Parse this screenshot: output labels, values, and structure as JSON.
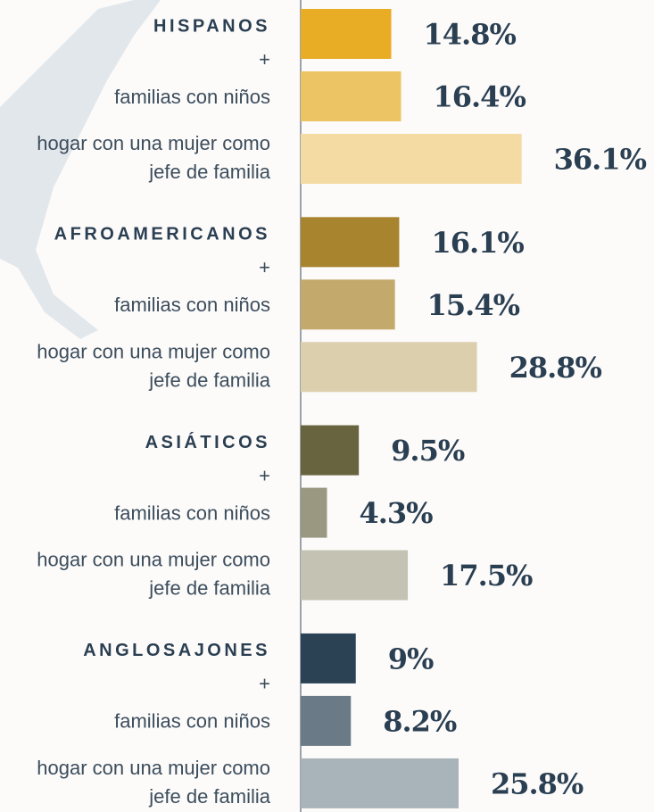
{
  "chart_data": {
    "type": "bar",
    "orientation": "horizontal",
    "joiner": "+",
    "subcategories": [
      "familias con niños",
      "hogar con una mujer como jefe de familia"
    ],
    "xlim": [
      0,
      50
    ],
    "groups": [
      {
        "name": "HISPANOS",
        "colors": [
          "#e8ad25",
          "#edc463",
          "#f4dba3"
        ],
        "values": [
          14.8,
          16.4,
          36.1
        ],
        "value_labels": [
          "14.8%",
          "16.4%",
          "36.1%"
        ]
      },
      {
        "name": "AFROAMERICANOS",
        "colors": [
          "#a8842f",
          "#c4a96c",
          "#dccfae"
        ],
        "values": [
          16.1,
          15.4,
          28.8
        ],
        "value_labels": [
          "16.1%",
          "15.4%",
          "28.8%"
        ]
      },
      {
        "name": "ASIÁTICOS",
        "colors": [
          "#686440",
          "#9b9882",
          "#c4c2b3"
        ],
        "values": [
          9.5,
          4.3,
          17.5
        ],
        "value_labels": [
          "9.5%",
          "4.3%",
          "17.5%"
        ]
      },
      {
        "name": "ANGLOSAJONES",
        "colors": [
          "#2b4255",
          "#6a7b87",
          "#a9b4ba"
        ],
        "values": [
          9,
          8.2,
          25.8
        ],
        "value_labels": [
          "9%",
          "8.2%",
          "25.8%"
        ]
      }
    ]
  }
}
